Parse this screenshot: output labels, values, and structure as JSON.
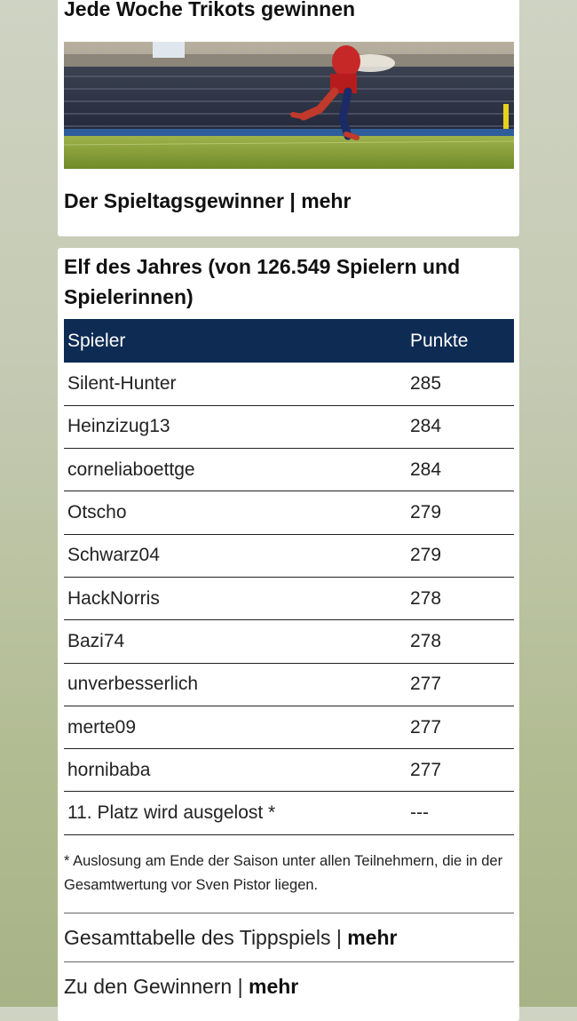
{
  "teaser": {
    "title": "Jede Woche Trikots gewinnen",
    "image_alt": "Fußballspieler im Stadion",
    "link_text": "Der Spieltagsgewinner",
    "link_sep": " | ",
    "link_more": "mehr"
  },
  "ranking": {
    "title": "Elf des Jahres (von 126.549 Spielern und Spielerinnen)",
    "header": {
      "player": "Spieler",
      "points": "Punkte"
    },
    "rows": [
      {
        "player": "Silent-Hunter",
        "points": "285"
      },
      {
        "player": "Heinzizug13",
        "points": "284"
      },
      {
        "player": "corneliaboettge",
        "points": "284"
      },
      {
        "player": "Otscho",
        "points": "279"
      },
      {
        "player": "Schwarz04",
        "points": "279"
      },
      {
        "player": "HackNorris",
        "points": "278"
      },
      {
        "player": "Bazi74",
        "points": "278"
      },
      {
        "player": "unverbesserlich",
        "points": "277"
      },
      {
        "player": "merte09",
        "points": "277"
      },
      {
        "player": "hornibaba",
        "points": "277"
      },
      {
        "player": "11. Platz wird ausgelost *",
        "points": "---"
      }
    ],
    "footnote": "* Auslosung am Ende der Saison unter allen Teilnehmern, die in der Gesamtwertung vor Sven Pistor liegen."
  },
  "links": [
    {
      "text": "Gesamttabelle des Tippspiels",
      "sep": " | ",
      "more": "mehr"
    },
    {
      "text": "Zu den Gewinnern",
      "sep": " | ",
      "more": "mehr"
    }
  ],
  "colors": {
    "table_header": "#0d2b53",
    "background": "#c3c9b1"
  }
}
